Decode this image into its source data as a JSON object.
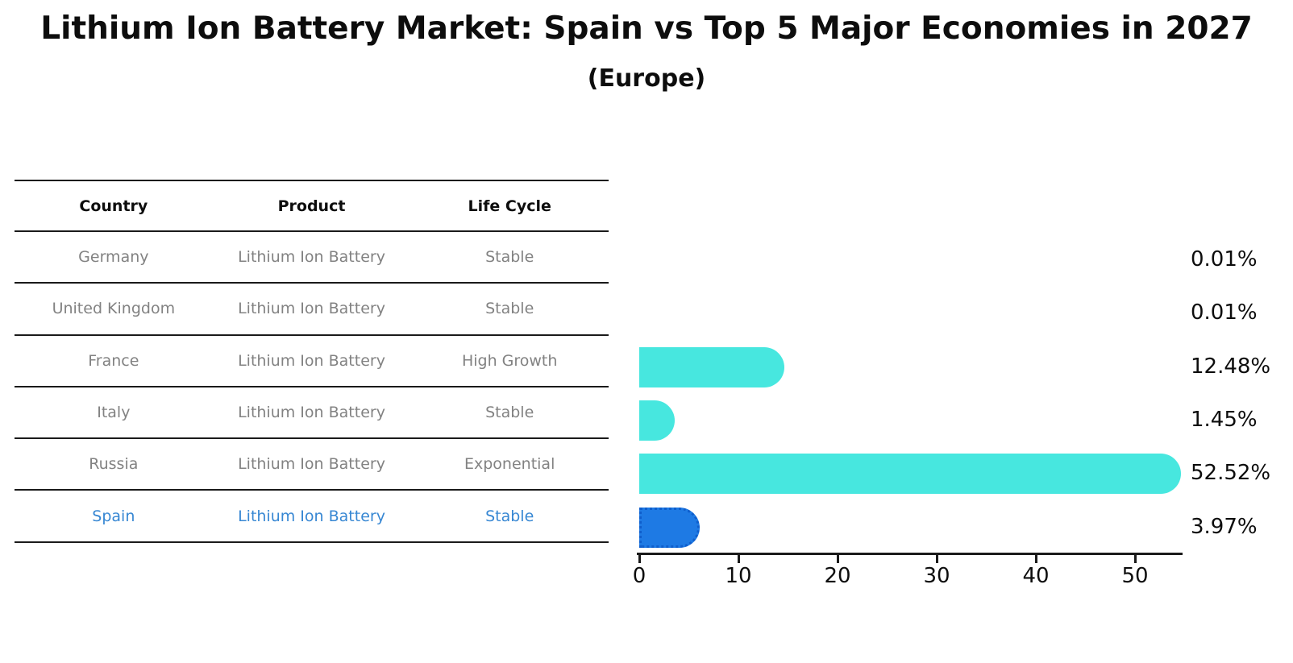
{
  "title": "Lithium Ion Battery Market: Spain vs Top 5 Major Economies in 2027",
  "subtitle": "(Europe)",
  "colors": {
    "bar_default": "#47E7DF",
    "bar_highlight": "#1E7AE4",
    "bar_highlight_border": "#0F5ECC",
    "table_header_text": "#0d0d0d",
    "table_body_text": "#828282",
    "highlight_row_text": "#3787D3",
    "line": "#1a1a1a",
    "value_text": "#0d0d0d"
  },
  "table": {
    "headers": [
      "Country",
      "Product",
      "Life Cycle"
    ],
    "rows": [
      {
        "country": "Germany",
        "product": "Lithium Ion Battery",
        "life_cycle": "Stable",
        "highlight": false
      },
      {
        "country": "United Kingdom",
        "product": "Lithium Ion Battery",
        "life_cycle": "Stable",
        "highlight": false
      },
      {
        "country": "France",
        "product": "Lithium Ion Battery",
        "life_cycle": "High Growth",
        "highlight": false
      },
      {
        "country": "Italy",
        "product": "Lithium Ion Battery",
        "life_cycle": "Stable",
        "highlight": false
      },
      {
        "country": "Russia",
        "product": "Lithium Ion Battery",
        "life_cycle": "Exponential",
        "highlight": false
      },
      {
        "country": "Spain",
        "product": "Lithium Ion Battery",
        "life_cycle": "Stable",
        "highlight": true
      }
    ]
  },
  "chart_data": {
    "type": "bar",
    "orientation": "horizontal",
    "title": "Lithium Ion Battery Market: Spain vs Top 5 Major Economies in 2027",
    "subtitle": "(Europe)",
    "categories": [
      "Germany",
      "United Kingdom",
      "France",
      "Italy",
      "Russia",
      "Spain"
    ],
    "values": [
      0.01,
      0.01,
      12.48,
      1.45,
      52.52,
      3.97
    ],
    "value_labels": [
      "0.01%",
      "0.01%",
      "12.48%",
      "1.45%",
      "52.52%",
      "3.97%"
    ],
    "unit": "%",
    "highlight_category": "Spain",
    "xlim": [
      0,
      55
    ],
    "x_ticks": [
      0,
      10,
      20,
      30,
      40,
      50
    ],
    "grid": false,
    "legend": false
  }
}
